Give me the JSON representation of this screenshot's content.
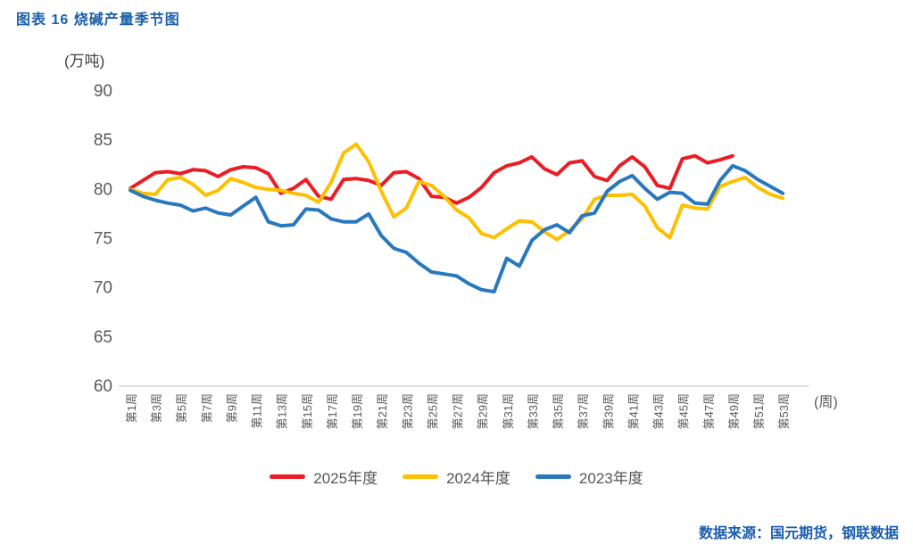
{
  "title": "图表 16 烧碱产量季节图",
  "y_unit": "(万吨)",
  "x_unit": "(周)",
  "source": "数据来源：国元期货，钢联数据",
  "colors": {
    "title_blue": "#1E5FA9",
    "source_blue": "#1A5CB0",
    "axis_text": "#595959",
    "axis_line": "#C6C6C6"
  },
  "chart_data": {
    "type": "line",
    "title": "图表 16 烧碱产量季节图",
    "xlabel": "(周)",
    "ylabel": "(万吨)",
    "ylim": [
      60,
      90
    ],
    "ytick_step": 5,
    "y_ticks": [
      90,
      85,
      80,
      75,
      70,
      65,
      60
    ],
    "grid": false,
    "legend_position": "bottom-center",
    "weeks_total": 53,
    "x_tick_labels": [
      "第1周",
      "第3周",
      "第5周",
      "第7周",
      "第9周",
      "第11周",
      "第13周",
      "第15周",
      "第17周",
      "第19周",
      "第21周",
      "第23周",
      "第25周",
      "第27周",
      "第29周",
      "第31周",
      "第33周",
      "第35周",
      "第37周",
      "第39周",
      "第41周",
      "第43周",
      "第45周",
      "第47周",
      "第49周",
      "第51周",
      "第53周"
    ],
    "series": [
      {
        "name": "2025年度",
        "color": "#EC1C24",
        "start_week": 1,
        "values": [
          80.1,
          80.9,
          81.7,
          81.8,
          81.6,
          82.0,
          81.9,
          81.3,
          82.0,
          82.3,
          82.2,
          81.6,
          79.6,
          80.1,
          81.0,
          79.3,
          79.0,
          81.0,
          81.1,
          80.9,
          80.4,
          81.7,
          81.8,
          81.1,
          79.3,
          79.2,
          78.6,
          79.2,
          80.2,
          81.7,
          82.4,
          82.7,
          83.3,
          82.1,
          81.5,
          82.7,
          82.9,
          81.3,
          80.9,
          82.4,
          83.3,
          82.3,
          80.4,
          80.1,
          83.1,
          83.4,
          82.7,
          83.0,
          83.4
        ]
      },
      {
        "name": "2024年度",
        "color": "#FFC000",
        "start_week": 1,
        "values": [
          80.0,
          79.6,
          79.5,
          81.0,
          81.2,
          80.5,
          79.4,
          79.9,
          81.1,
          80.7,
          80.2,
          80.0,
          79.9,
          79.6,
          79.4,
          78.7,
          80.7,
          83.7,
          84.6,
          82.8,
          79.8,
          77.2,
          78.1,
          80.8,
          80.4,
          79.3,
          77.9,
          77.1,
          75.5,
          75.1,
          76.0,
          76.8,
          76.7,
          75.7,
          74.9,
          75.8,
          77.0,
          79.0,
          79.4,
          79.4,
          79.5,
          78.3,
          76.1,
          75.1,
          78.4,
          78.1,
          78.0,
          80.3,
          80.8,
          81.2,
          80.2,
          79.5,
          79.1
        ]
      },
      {
        "name": "2023年度",
        "color": "#2878BE",
        "start_week": 1,
        "values": [
          79.9,
          79.3,
          78.9,
          78.6,
          78.4,
          77.8,
          78.1,
          77.6,
          77.4,
          78.3,
          79.2,
          76.7,
          76.3,
          76.4,
          78.0,
          77.9,
          77.0,
          76.7,
          76.7,
          77.5,
          75.3,
          74.0,
          73.6,
          72.5,
          71.6,
          71.4,
          71.2,
          70.4,
          69.8,
          69.6,
          73.0,
          72.2,
          74.8,
          75.9,
          76.4,
          75.6,
          77.3,
          77.6,
          79.8,
          80.8,
          81.4,
          80.1,
          79.0,
          79.7,
          79.6,
          78.6,
          78.5,
          80.9,
          82.4,
          81.9,
          81.0,
          80.3,
          79.6
        ]
      }
    ]
  }
}
